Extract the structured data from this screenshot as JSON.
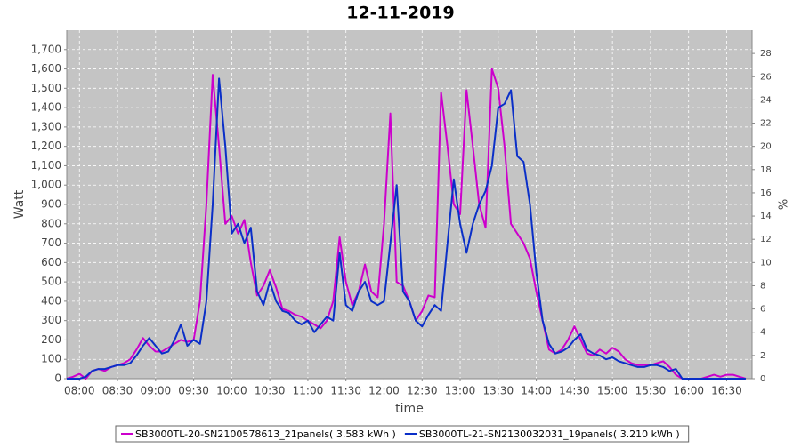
{
  "chart_data": {
    "type": "line",
    "title": "12-11-2019",
    "xlabel": "time",
    "ylabel": "Watt",
    "y2label": "%",
    "xlim": [
      "07:50",
      "16:50"
    ],
    "xticks": [
      "08:00",
      "08:30",
      "09:00",
      "09:30",
      "10:00",
      "10:30",
      "11:00",
      "11:30",
      "12:00",
      "12:30",
      "13:00",
      "13:30",
      "14:00",
      "14:30",
      "15:00",
      "15:30",
      "16:00",
      "16:30"
    ],
    "ylim": [
      0,
      1800
    ],
    "yticks": [
      0,
      100,
      200,
      300,
      400,
      500,
      600,
      700,
      800,
      900,
      {
        "value": 1000,
        "label": "1,000"
      },
      {
        "value": 1100,
        "label": "1,100"
      },
      {
        "value": 1200,
        "label": "1,200"
      },
      {
        "value": 1300,
        "label": "1,300"
      },
      {
        "value": 1400,
        "label": "1,400"
      },
      {
        "value": 1500,
        "label": "1,500"
      },
      {
        "value": 1600,
        "label": "1,600"
      },
      {
        "value": 1700,
        "label": "1,700"
      }
    ],
    "y2lim": [
      0,
      30
    ],
    "y2ticks": [
      0,
      2,
      4,
      6,
      8,
      10,
      12,
      14,
      16,
      18,
      20,
      22,
      24,
      26,
      28
    ],
    "grid": true,
    "legend": "bottom",
    "x": [
      "07:50",
      "07:55",
      "08:00",
      "08:05",
      "08:10",
      "08:15",
      "08:20",
      "08:25",
      "08:30",
      "08:35",
      "08:40",
      "08:45",
      "08:50",
      "08:55",
      "09:00",
      "09:05",
      "09:10",
      "09:15",
      "09:20",
      "09:25",
      "09:30",
      "09:35",
      "09:40",
      "09:45",
      "09:50",
      "09:55",
      "10:00",
      "10:05",
      "10:10",
      "10:15",
      "10:20",
      "10:25",
      "10:30",
      "10:35",
      "10:40",
      "10:45",
      "10:50",
      "10:55",
      "11:00",
      "11:05",
      "11:10",
      "11:15",
      "11:20",
      "11:25",
      "11:30",
      "11:35",
      "11:40",
      "11:45",
      "11:50",
      "11:55",
      "12:00",
      "12:05",
      "12:10",
      "12:15",
      "12:20",
      "12:25",
      "12:30",
      "12:35",
      "12:40",
      "12:45",
      "12:50",
      "12:55",
      "13:00",
      "13:05",
      "13:10",
      "13:15",
      "13:20",
      "13:25",
      "13:30",
      "13:35",
      "13:40",
      "13:45",
      "13:50",
      "13:55",
      "14:00",
      "14:05",
      "14:10",
      "14:15",
      "14:20",
      "14:25",
      "14:30",
      "14:35",
      "14:40",
      "14:45",
      "14:50",
      "14:55",
      "15:00",
      "15:05",
      "15:10",
      "15:15",
      "15:20",
      "15:25",
      "15:30",
      "15:35",
      "15:40",
      "15:45",
      "15:50",
      "15:55",
      "16:00",
      "16:05",
      "16:10",
      "16:15",
      "16:20",
      "16:25",
      "16:30",
      "16:35",
      "16:40",
      "16:45"
    ],
    "series": [
      {
        "name": "SB3000TL-20-SN2100578613_21panels( 3.583 kWh )",
        "color": "#cc00cc",
        "values": [
          0,
          10,
          25,
          0,
          40,
          50,
          40,
          60,
          70,
          80,
          100,
          150,
          210,
          170,
          140,
          140,
          160,
          180,
          200,
          190,
          200,
          400,
          900,
          1570,
          1200,
          800,
          840,
          750,
          820,
          600,
          430,
          480,
          560,
          470,
          360,
          350,
          330,
          320,
          300,
          280,
          260,
          300,
          400,
          730,
          500,
          380,
          450,
          590,
          450,
          420,
          800,
          1370,
          500,
          480,
          400,
          300,
          350,
          430,
          420,
          1480,
          1200,
          900,
          850,
          1490,
          1200,
          900,
          780,
          1600,
          1500,
          1200,
          800,
          750,
          700,
          620,
          450,
          300,
          150,
          130,
          150,
          200,
          270,
          200,
          130,
          120,
          150,
          130,
          160,
          140,
          100,
          80,
          70,
          70,
          70,
          80,
          90,
          60,
          20,
          0,
          0,
          0,
          0,
          10,
          20,
          10,
          20,
          20,
          10,
          0
        ]
      },
      {
        "name": "SB3000TL-21-SN2130032031_19panels( 3.210 kWh )",
        "color": "#0a2fc8",
        "values": [
          0,
          0,
          0,
          10,
          40,
          50,
          50,
          60,
          70,
          70,
          80,
          120,
          170,
          210,
          170,
          130,
          140,
          200,
          280,
          170,
          200,
          180,
          400,
          900,
          1550,
          1200,
          750,
          800,
          700,
          780,
          450,
          380,
          500,
          400,
          350,
          340,
          300,
          280,
          300,
          240,
          280,
          320,
          300,
          650,
          380,
          350,
          450,
          500,
          400,
          380,
          400,
          700,
          1000,
          450,
          400,
          300,
          270,
          330,
          380,
          350,
          700,
          1030,
          800,
          650,
          800,
          900,
          970,
          1100,
          1400,
          1420,
          1490,
          1150,
          1120,
          900,
          550,
          300,
          180,
          130,
          140,
          160,
          200,
          230,
          150,
          130,
          120,
          100,
          110,
          90,
          80,
          70,
          60,
          60,
          70,
          70,
          60,
          40,
          50,
          0,
          0,
          0,
          0,
          0,
          0,
          0,
          0,
          0,
          0,
          0
        ]
      }
    ]
  }
}
